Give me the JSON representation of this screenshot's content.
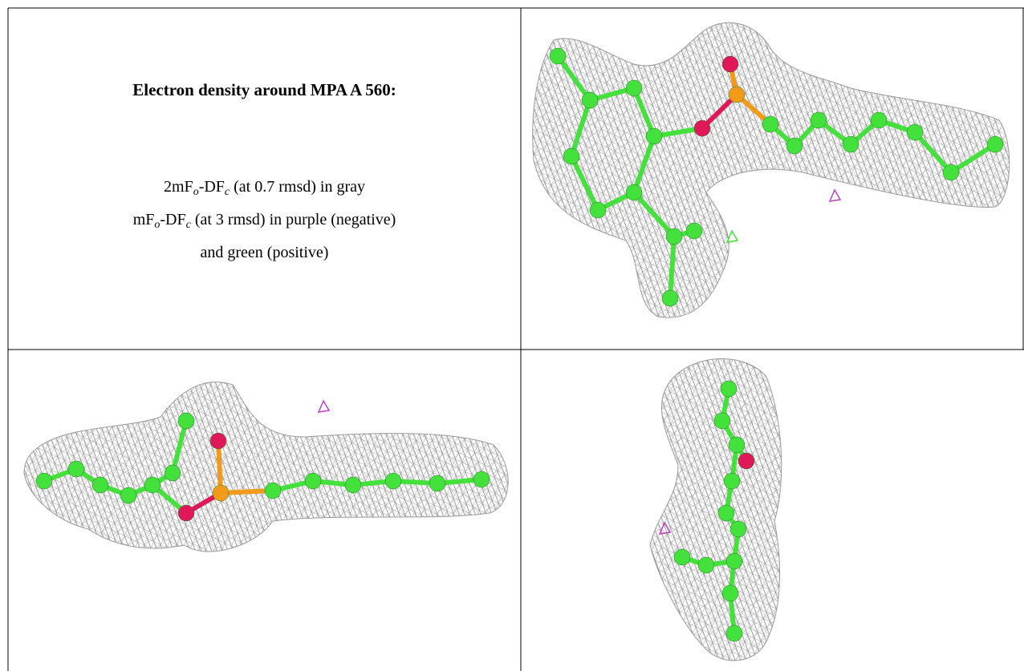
{
  "caption": {
    "title": "Electron density around MPA A 560:",
    "lines": [
      [
        "2mF",
        "o",
        "-DF",
        "c",
        " (at 0.7 rmsd) in gray"
      ],
      [
        "mF",
        "o",
        "-DF",
        "c",
        " (at 3 rmsd) in purple (negative)"
      ],
      [
        "and green (positive)"
      ]
    ]
  }
}
